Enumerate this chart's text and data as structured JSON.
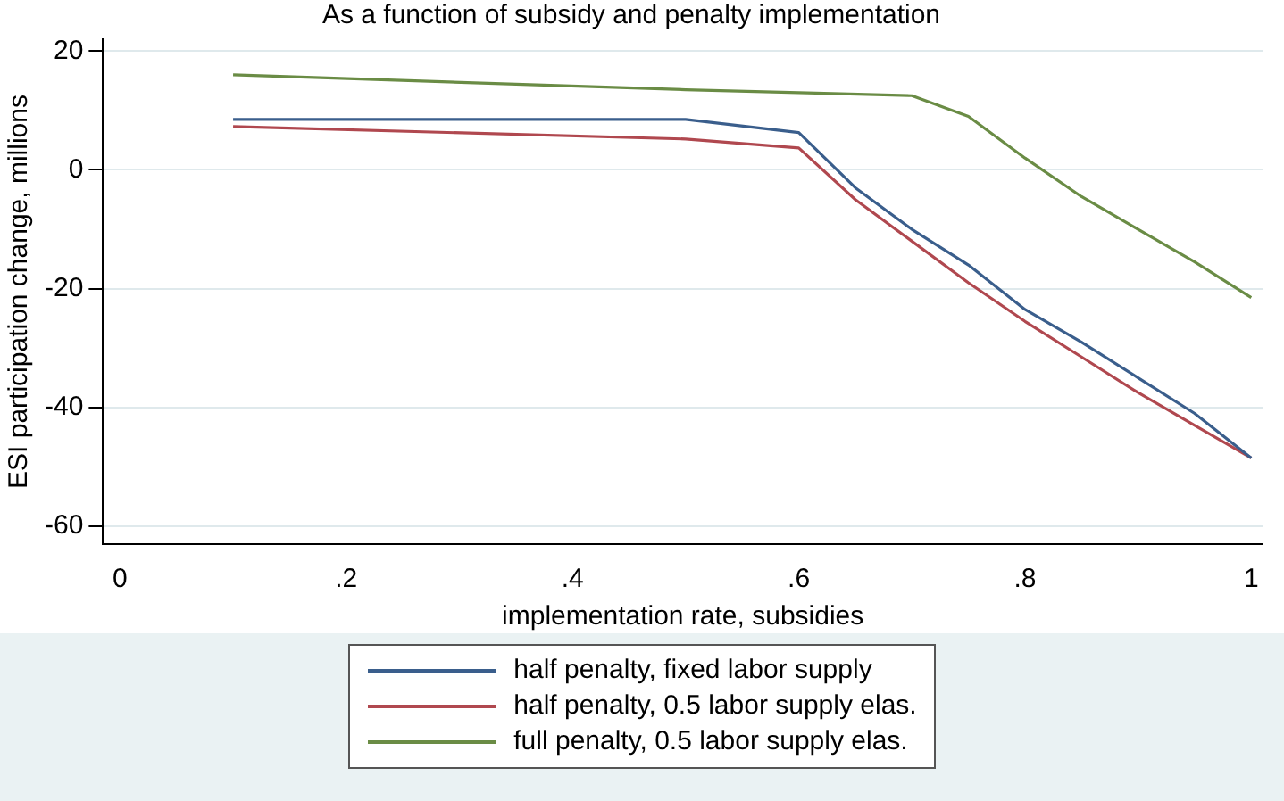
{
  "chart_data": {
    "type": "line",
    "title": "As a function of subsidy and penalty implementation",
    "xlabel": "implementation rate, subsidies",
    "ylabel": "ESI participation change, millions",
    "x": [
      0.1,
      0.5,
      0.6,
      0.65,
      0.7,
      0.75,
      0.8,
      0.85,
      0.9,
      0.95,
      1
    ],
    "series": [
      {
        "name": "half penalty, fixed labor supply",
        "color": "#3a5e8c",
        "values": [
          8.5,
          8.5,
          6.3,
          -3,
          -10,
          -16,
          -23.5,
          -29,
          -35,
          -41,
          -48.5
        ]
      },
      {
        "name": "half penalty, 0.5 labor supply elas.",
        "color": "#b0484f",
        "values": [
          7.3,
          5.2,
          3.7,
          -5,
          -12,
          -19,
          -25.5,
          -31.5,
          -37.5,
          -43,
          -48.5
        ]
      },
      {
        "name": "full penalty, 0.5 labor supply elas.",
        "color": "#6a8c45",
        "values": [
          16,
          13.5,
          13,
          null,
          12.5,
          9,
          2,
          -4.5,
          -10,
          -15.5,
          -21.5
        ]
      }
    ],
    "xlim": [
      -0.015,
      1.01
    ],
    "xticks": [
      {
        "value": 0,
        "label": "0"
      },
      {
        "value": 0.2,
        "label": ".2"
      },
      {
        "value": 0.4,
        "label": ".4"
      },
      {
        "value": 0.6,
        "label": ".6"
      },
      {
        "value": 0.8,
        "label": ".8"
      },
      {
        "value": 1,
        "label": "1"
      }
    ],
    "ylim": [
      -63,
      22
    ],
    "yticks": [
      -60,
      -40,
      -20,
      0,
      20
    ],
    "grid": "y",
    "legend": "bottom",
    "marker": "none",
    "line_style": "solid"
  }
}
